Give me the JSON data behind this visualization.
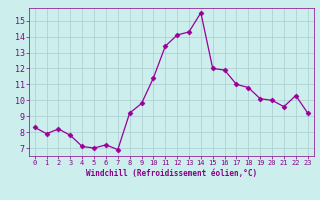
{
  "x": [
    0,
    1,
    2,
    3,
    4,
    5,
    6,
    7,
    8,
    9,
    10,
    11,
    12,
    13,
    14,
    15,
    16,
    17,
    18,
    19,
    20,
    21,
    22,
    23
  ],
  "y": [
    8.3,
    7.9,
    8.2,
    7.8,
    7.1,
    7.0,
    7.2,
    6.9,
    9.2,
    9.8,
    11.4,
    13.4,
    14.1,
    14.3,
    15.5,
    12.0,
    11.9,
    11.0,
    10.8,
    10.1,
    10.0,
    9.6,
    10.3,
    9.2
  ],
  "line_color": "#990099",
  "marker": "D",
  "marker_size": 2.5,
  "background_color": "#cceeed",
  "grid_color": "#aacccc",
  "xlabel": "Windchill (Refroidissement éolien,°C)",
  "xlabel_color": "#880088",
  "tick_color": "#880088",
  "ylim": [
    6.5,
    15.8
  ],
  "xlim": [
    -0.5,
    23.5
  ],
  "yticks": [
    7,
    8,
    9,
    10,
    11,
    12,
    13,
    14,
    15
  ],
  "xticks": [
    0,
    1,
    2,
    3,
    4,
    5,
    6,
    7,
    8,
    9,
    10,
    11,
    12,
    13,
    14,
    15,
    16,
    17,
    18,
    19,
    20,
    21,
    22,
    23
  ],
  "xtick_labels": [
    "0",
    "1",
    "2",
    "3",
    "4",
    "5",
    "6",
    "7",
    "8",
    "9",
    "10",
    "11",
    "12",
    "13",
    "14",
    "15",
    "16",
    "17",
    "18",
    "19",
    "20",
    "21",
    "22",
    "23"
  ]
}
